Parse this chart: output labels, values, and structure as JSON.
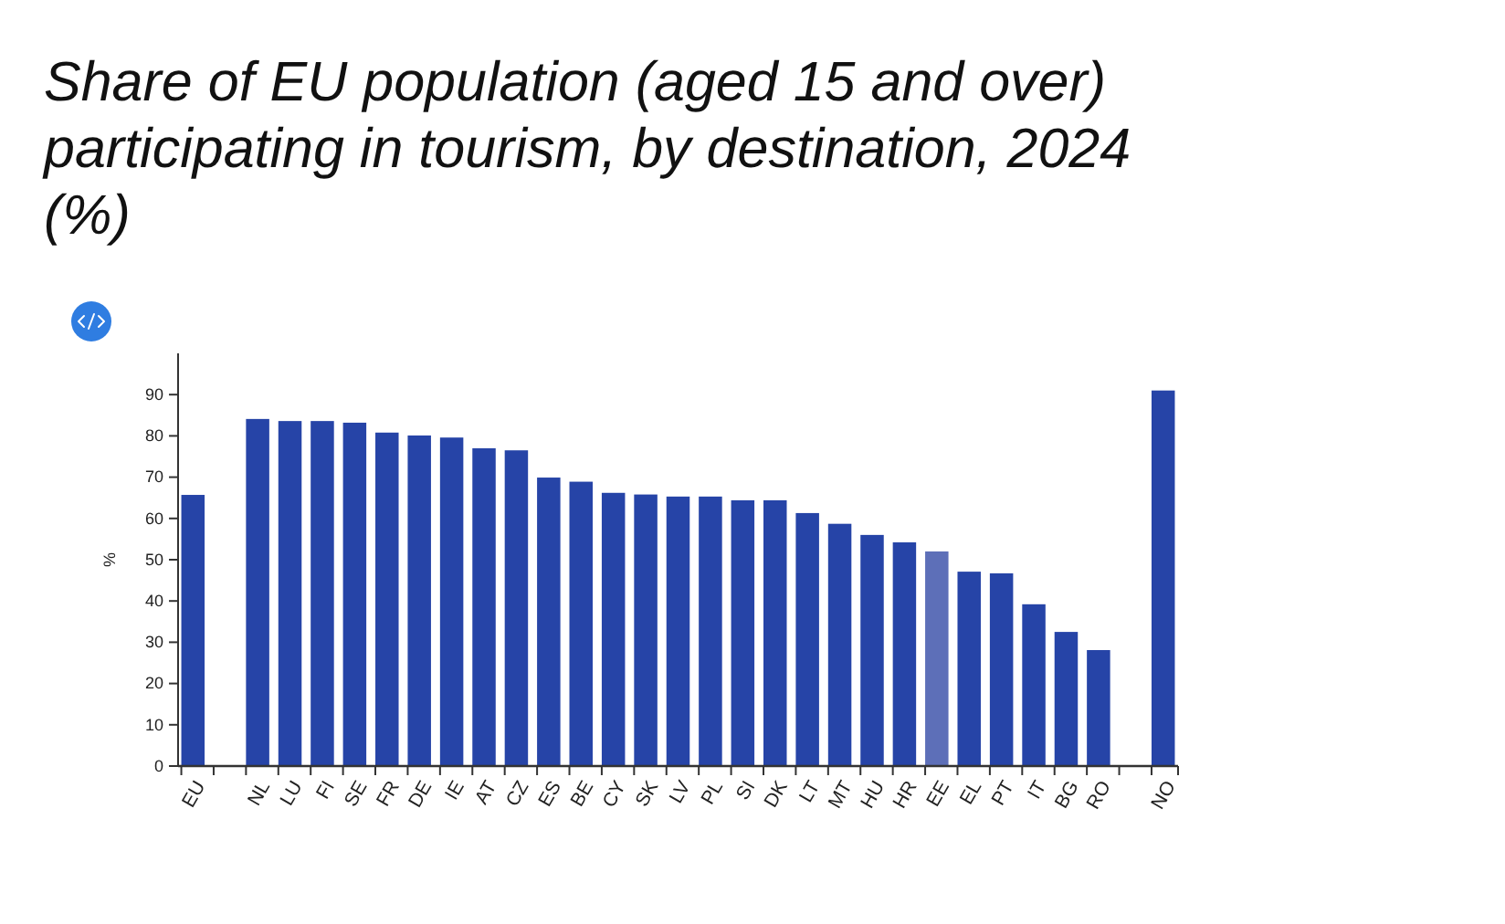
{
  "chart_data": {
    "type": "bar",
    "title": "Share of EU population (aged 15 and over) participating in tourism, by destination, 2024 (%)",
    "ylabel": "%",
    "categories": [
      "EU",
      null,
      "NL",
      "LU",
      "FI",
      "SE",
      "FR",
      "DE",
      "IE",
      "AT",
      "CZ",
      "ES",
      "BE",
      "CY",
      "SK",
      "LV",
      "PL",
      "SI",
      "DK",
      "LT",
      "MT",
      "HU",
      "HR",
      "EE",
      "EL",
      "PT",
      "IT",
      "BG",
      "RO",
      null,
      "NO"
    ],
    "values": [
      65.7,
      null,
      84.1,
      83.6,
      83.6,
      83.2,
      80.8,
      80.1,
      79.6,
      77.0,
      76.5,
      69.9,
      68.9,
      66.2,
      65.8,
      65.3,
      65.3,
      64.4,
      64.4,
      61.3,
      58.7,
      56.0,
      54.2,
      52.0,
      47.1,
      46.7,
      39.2,
      32.5,
      28.1,
      null,
      91.0
    ],
    "colors": [
      "#2644a7",
      null,
      "#2644a7",
      "#2644a7",
      "#2644a7",
      "#2644a7",
      "#2644a7",
      "#2644a7",
      "#2644a7",
      "#2644a7",
      "#2644a7",
      "#2644a7",
      "#2644a7",
      "#2644a7",
      "#2644a7",
      "#2644a7",
      "#2644a7",
      "#2644a7",
      "#2644a7",
      "#2644a7",
      "#2644a7",
      "#2644a7",
      "#2644a7",
      "#5d6fb8",
      "#2644a7",
      "#2644a7",
      "#2644a7",
      "#2644a7",
      "#2644a7",
      null,
      "#2644a7"
    ],
    "ylim": [
      0,
      100
    ],
    "yticks": [
      0,
      10,
      20,
      30,
      40,
      50,
      60,
      70,
      80,
      90
    ]
  }
}
